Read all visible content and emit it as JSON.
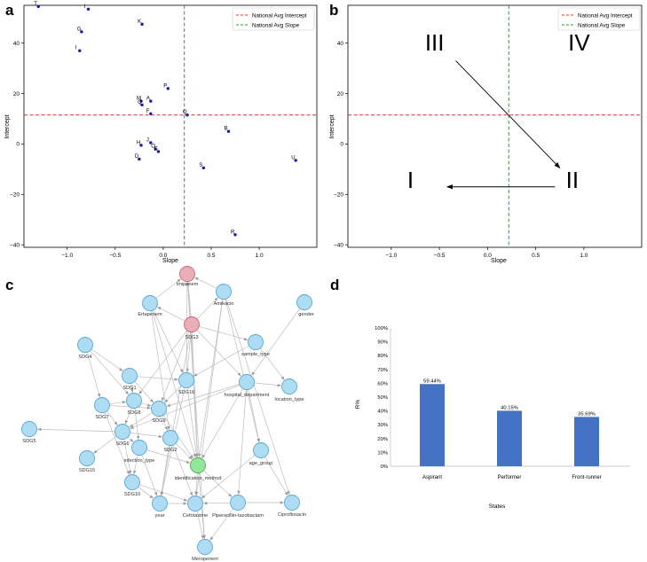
{
  "panel_labels": {
    "a": "a",
    "b": "b",
    "c": "c",
    "d": "d"
  },
  "chart_data": [
    {
      "id": "a",
      "type": "scatter",
      "xlabel": "Slope",
      "ylabel": "Intercept",
      "xlim": [
        -1.45,
        1.6
      ],
      "ylim": [
        -41,
        55
      ],
      "xticks": [
        -1.0,
        -0.5,
        0.0,
        0.5,
        1.0
      ],
      "xtick_labels": [
        "−1.0",
        "−0.5",
        "0.0",
        "0.5",
        "1.0"
      ],
      "yticks": [
        -40,
        -20,
        0,
        20,
        40
      ],
      "ytick_labels": [
        "−40",
        "−20",
        "0",
        "20",
        "40"
      ],
      "hline": {
        "y": 11.5,
        "color": "#e03131",
        "label": "National Avg Intercept"
      },
      "vline": {
        "x": 0.22,
        "color": "#2a9d2a",
        "label": "National Avg Slope"
      },
      "legend_position": "top-right",
      "point_color": "#1a1aa6",
      "points": [
        {
          "label": "T",
          "x": -1.3,
          "y": 54.5
        },
        {
          "label": "I",
          "x": -0.78,
          "y": 53.5
        },
        {
          "label": "K",
          "x": -0.22,
          "y": 47.5
        },
        {
          "label": "G",
          "x": -0.85,
          "y": 44.5
        },
        {
          "label": "I",
          "x": -0.87,
          "y": 37
        },
        {
          "label": "P",
          "x": 0.05,
          "y": 22
        },
        {
          "label": "M",
          "x": -0.23,
          "y": 17
        },
        {
          "label": "A",
          "x": -0.13,
          "y": 17
        },
        {
          "label": "Q",
          "x": -0.22,
          "y": 15.5
        },
        {
          "label": "F",
          "x": -0.13,
          "y": 12
        },
        {
          "label": "Q",
          "x": 0.25,
          "y": 11.5
        },
        {
          "label": "B",
          "x": 0.68,
          "y": 5
        },
        {
          "label": "J",
          "x": -0.13,
          "y": 0.5
        },
        {
          "label": "H",
          "x": -0.23,
          "y": -0.5
        },
        {
          "label": "O",
          "x": -0.08,
          "y": -2
        },
        {
          "label": "C",
          "x": -0.05,
          "y": -3
        },
        {
          "label": "D",
          "x": -0.25,
          "y": -6
        },
        {
          "label": "U",
          "x": 1.38,
          "y": -6.5
        },
        {
          "label": "S",
          "x": 0.42,
          "y": -9.5
        },
        {
          "label": "R",
          "x": 0.75,
          "y": -36
        }
      ]
    },
    {
      "id": "b",
      "type": "scatter",
      "xlabel": "Slope",
      "ylabel": "Intercept",
      "xlim": [
        -1.45,
        1.6
      ],
      "ylim": [
        -41,
        55
      ],
      "xticks": [
        -1.0,
        -0.5,
        0.0,
        0.5,
        1.0
      ],
      "xtick_labels": [
        "−1.0",
        "−0.5",
        "0.0",
        "0.5",
        "1.0"
      ],
      "yticks": [
        -40,
        -20,
        0,
        20,
        40
      ],
      "ytick_labels": [
        "−40",
        "−20",
        "0",
        "20",
        "40"
      ],
      "hline": {
        "y": 11.5,
        "color": "#e03131",
        "label": "National Avg Intercept"
      },
      "vline": {
        "x": 0.22,
        "color": "#2a9d2a",
        "label": "National Avg Slope"
      },
      "legend_position": "top-right",
      "quadrants": [
        {
          "label": "III",
          "x": -0.55,
          "y": 37
        },
        {
          "label": "IV",
          "x": 0.95,
          "y": 37
        },
        {
          "label": "I",
          "x": -0.8,
          "y": -17.5
        },
        {
          "label": "II",
          "x": 0.88,
          "y": -17.5
        }
      ],
      "arrows": [
        {
          "from": [
            -0.33,
            33
          ],
          "to": [
            0.75,
            -9.5
          ]
        },
        {
          "from": [
            0.7,
            -17
          ],
          "to": [
            -0.42,
            -17
          ]
        }
      ]
    },
    {
      "id": "c",
      "type": "network",
      "nodes": [
        {
          "id": "Imipenem",
          "label": "Imipenem",
          "group": "pink"
        },
        {
          "id": "Amikacin",
          "label": "Amikacin",
          "group": "blue"
        },
        {
          "id": "Ertapenem",
          "label": "Ertapenem",
          "group": "blue"
        },
        {
          "id": "gender",
          "label": "gender",
          "group": "blue"
        },
        {
          "id": "SDG3",
          "label": "SDG3",
          "group": "pink"
        },
        {
          "id": "sample_type",
          "label": "sample_type",
          "group": "blue"
        },
        {
          "id": "SDG4",
          "label": "SDG4",
          "group": "blue"
        },
        {
          "id": "SDG1",
          "label": "SDG1",
          "group": "blue"
        },
        {
          "id": "SDG16",
          "label": "SDG16",
          "group": "blue"
        },
        {
          "id": "hospital_department",
          "label": "hospital_department",
          "group": "blue"
        },
        {
          "id": "location_type",
          "label": "location_type",
          "group": "blue"
        },
        {
          "id": "SDG7",
          "label": "SDG7",
          "group": "blue"
        },
        {
          "id": "SDG8",
          "label": "SDG8",
          "group": "blue"
        },
        {
          "id": "SDG9",
          "label": "SDG9",
          "group": "blue"
        },
        {
          "id": "SDG6",
          "label": "SDG6",
          "group": "blue"
        },
        {
          "id": "SDG2",
          "label": "SDG2",
          "group": "blue"
        },
        {
          "id": "SDG5",
          "label": "SDG5",
          "group": "blue"
        },
        {
          "id": "infection_type",
          "label": "infection_type",
          "group": "blue"
        },
        {
          "id": "SDG15",
          "label": "SDG15",
          "group": "blue"
        },
        {
          "id": "identification_method",
          "label": "identification_method",
          "group": "green"
        },
        {
          "id": "age_group",
          "label": "age_group",
          "group": "blue"
        },
        {
          "id": "SDG10",
          "label": "SDG10",
          "group": "blue"
        },
        {
          "id": "year",
          "label": "year",
          "group": "blue"
        },
        {
          "id": "Cefotaxime",
          "label": "Cefotaxime",
          "group": "blue"
        },
        {
          "id": "Piperacillin_tazobactam",
          "label": "Piperacillin-tazobactam",
          "group": "blue"
        },
        {
          "id": "Ciprofloxacin",
          "label": "Ciprofloxacin",
          "group": "blue"
        },
        {
          "id": "Meropenem",
          "label": "Meropenem",
          "group": "blue"
        }
      ],
      "edges": [
        [
          "SDG3",
          "Imipenem"
        ],
        [
          "SDG3",
          "Ertapenem"
        ],
        [
          "SDG3",
          "Amikacin"
        ],
        [
          "SDG3",
          "SDG16"
        ],
        [
          "SDG3",
          "identification_method"
        ],
        [
          "SDG3",
          "hospital_department"
        ],
        [
          "SDG3",
          "SDG9"
        ],
        [
          "SDG3",
          "sample_type"
        ],
        [
          "SDG3",
          "SDG8"
        ],
        [
          "SDG3",
          "year"
        ],
        [
          "Ertapenem",
          "Imipenem"
        ],
        [
          "Ertapenem",
          "SDG16"
        ],
        [
          "Ertapenem",
          "identification_method"
        ],
        [
          "Ertapenem",
          "SDG2"
        ],
        [
          "Amikacin",
          "Imipenem"
        ],
        [
          "Amikacin",
          "identification_method"
        ],
        [
          "Amikacin",
          "age_group"
        ],
        [
          "Amikacin",
          "Cefotaxime"
        ],
        [
          "gender",
          "hospital_department"
        ],
        [
          "sample_type",
          "SDG16"
        ],
        [
          "sample_type",
          "location_type"
        ],
        [
          "SDG4",
          "SDG1"
        ],
        [
          "SDG4",
          "SDG8"
        ],
        [
          "SDG4",
          "SDG7"
        ],
        [
          "SDG1",
          "SDG8"
        ],
        [
          "SDG1",
          "SDG9"
        ],
        [
          "SDG1",
          "SDG16"
        ],
        [
          "SDG16",
          "identification_method"
        ],
        [
          "SDG16",
          "SDG9"
        ],
        [
          "SDG16",
          "Imipenem"
        ],
        [
          "hospital_department",
          "location_type"
        ],
        [
          "hospital_department",
          "age_group"
        ],
        [
          "hospital_department",
          "Piperacillin_tazobactam"
        ],
        [
          "hospital_department",
          "SDG9"
        ],
        [
          "hospital_department",
          "identification_method"
        ],
        [
          "hospital_department",
          "SDG6"
        ],
        [
          "SDG7",
          "SDG8"
        ],
        [
          "SDG7",
          "SDG6"
        ],
        [
          "SDG7",
          "SDG10"
        ],
        [
          "SDG7",
          "SDG9"
        ],
        [
          "SDG8",
          "SDG9"
        ],
        [
          "SDG8",
          "SDG6"
        ],
        [
          "SDG8",
          "infection_type"
        ],
        [
          "SDG9",
          "SDG2"
        ],
        [
          "SDG9",
          "identification_method"
        ],
        [
          "SDG9",
          "SDG6"
        ],
        [
          "SDG6",
          "SDG5"
        ],
        [
          "SDG6",
          "SDG15"
        ],
        [
          "SDG6",
          "infection_type"
        ],
        [
          "SDG6",
          "SDG10"
        ],
        [
          "SDG6",
          "SDG2"
        ],
        [
          "SDG2",
          "identification_method"
        ],
        [
          "SDG2",
          "year"
        ],
        [
          "SDG2",
          "Cefotaxime"
        ],
        [
          "infection_type",
          "identification_method"
        ],
        [
          "infection_type",
          "SDG10"
        ],
        [
          "infection_type",
          "year"
        ],
        [
          "identification_method",
          "Cefotaxime"
        ],
        [
          "identification_method",
          "Meropenem"
        ],
        [
          "identification_method",
          "Piperacillin_tazobactam"
        ],
        [
          "identification_method",
          "Imipenem"
        ],
        [
          "age_group",
          "Ciprofloxacin"
        ],
        [
          "age_group",
          "Cefotaxime"
        ],
        [
          "SDG10",
          "year"
        ],
        [
          "SDG10",
          "Cefotaxime"
        ],
        [
          "year",
          "Cefotaxime"
        ],
        [
          "Piperacillin_tazobactam",
          "Cefotaxime"
        ],
        [
          "Piperacillin_tazobactam",
          "Ciprofloxacin"
        ],
        [
          "Piperacillin_tazobactam",
          "Meropenem"
        ],
        [
          "Cefotaxime",
          "Meropenem"
        ],
        [
          "Imipenem",
          "Meropenem"
        ],
        [
          "Amikacin",
          "Ciprofloxacin"
        ],
        [
          "SDG16",
          "year"
        ]
      ]
    },
    {
      "id": "d",
      "type": "bar",
      "categories": [
        "Aspirant",
        "Performer",
        "Front-runner"
      ],
      "values": [
        59.44,
        40.15,
        35.69
      ],
      "value_labels": [
        "59.44%",
        "40.15%",
        "35.69%"
      ],
      "bar_color": "#4472c4",
      "xlabel": "States",
      "ylabel": "R%",
      "ylim": [
        0,
        100
      ],
      "yticks": [
        0,
        10,
        20,
        30,
        40,
        50,
        60,
        70,
        80,
        90,
        100
      ],
      "ytick_labels": [
        "0%",
        "10%",
        "20%",
        "30%",
        "40%",
        "50%",
        "60%",
        "70%",
        "80%",
        "90%",
        "100%"
      ]
    }
  ]
}
